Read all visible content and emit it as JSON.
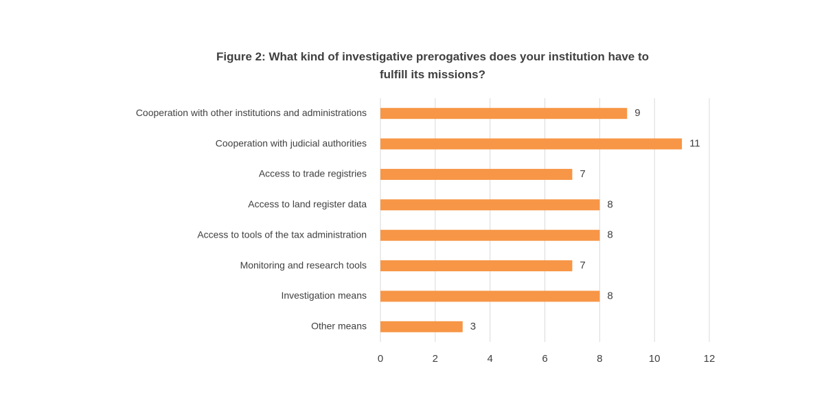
{
  "chart_data": {
    "type": "bar",
    "orientation": "horizontal",
    "title": "Figure 2: What kind of investigative prerogatives does your institution have to fulfill its missions?",
    "categories": [
      "Cooperation with other institutions and administrations",
      "Cooperation with judicial authorities",
      "Access to trade registries",
      "Access to land register data",
      "Access to tools of the tax administration",
      "Monitoring and research tools",
      "Investigation means",
      "Other means"
    ],
    "values": [
      9,
      11,
      7,
      8,
      8,
      7,
      8,
      3
    ],
    "color": "#f79646",
    "xlim": [
      0,
      12
    ],
    "xticks": [
      0,
      2,
      4,
      6,
      8,
      10,
      12
    ],
    "grid": true
  }
}
